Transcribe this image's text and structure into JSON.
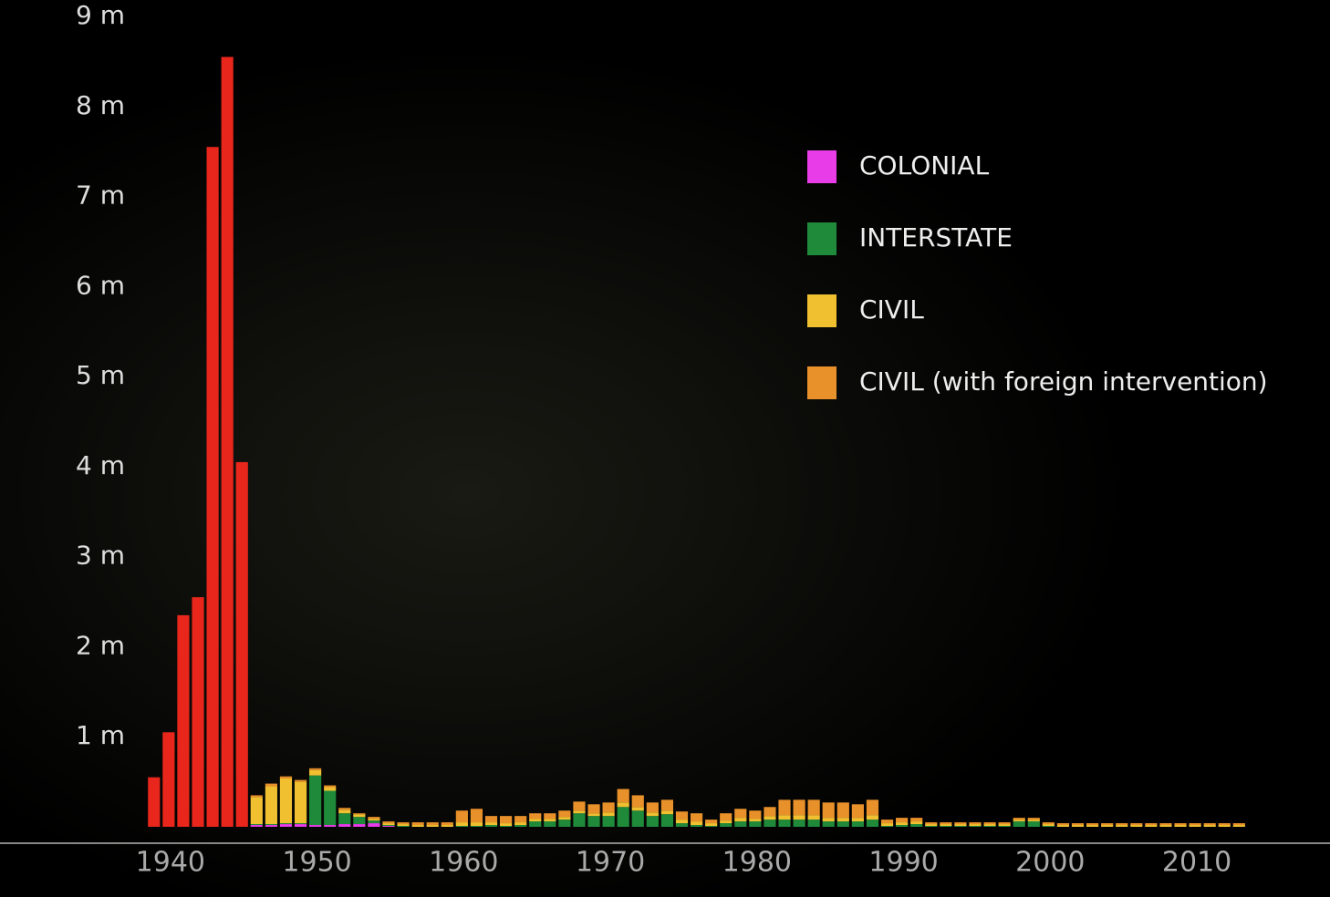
{
  "chart_data": {
    "type": "stacked_bar",
    "x": [
      1939,
      1940,
      1941,
      1942,
      1943,
      1944,
      1945,
      1946,
      1947,
      1948,
      1949,
      1950,
      1951,
      1952,
      1953,
      1954,
      1955,
      1956,
      1957,
      1958,
      1959,
      1960,
      1961,
      1962,
      1963,
      1964,
      1965,
      1966,
      1967,
      1968,
      1969,
      1970,
      1971,
      1972,
      1973,
      1974,
      1975,
      1976,
      1977,
      1978,
      1979,
      1980,
      1981,
      1982,
      1983,
      1984,
      1985,
      1986,
      1987,
      1988,
      1989,
      1990,
      1991,
      1992,
      1993,
      1994,
      1995,
      1996,
      1997,
      1998,
      1999,
      2000,
      2001,
      2002,
      2003,
      2004,
      2005,
      2006,
      2007,
      2008,
      2009,
      2010,
      2011,
      2012,
      2013
    ],
    "series": [
      {
        "color": "#e8261c",
        "values": [
          0.55,
          1.05,
          2.35,
          2.55,
          7.55,
          8.55,
          4.05,
          0,
          0,
          0,
          0,
          0,
          0,
          0,
          0,
          0,
          0,
          0,
          0,
          0,
          0,
          0,
          0,
          0,
          0,
          0,
          0,
          0,
          0,
          0,
          0,
          0,
          0,
          0,
          0,
          0,
          0,
          0,
          0,
          0,
          0,
          0,
          0,
          0,
          0,
          0,
          0,
          0,
          0,
          0,
          0,
          0,
          0,
          0,
          0,
          0,
          0,
          0,
          0,
          0,
          0,
          0,
          0,
          0,
          0,
          0,
          0,
          0,
          0,
          0,
          0,
          0,
          0,
          0,
          0
        ]
      },
      {
        "name": "COLONIAL",
        "color": "#e83ce8",
        "values": [
          0,
          0,
          0,
          0,
          0,
          0,
          0,
          0.02,
          0.02,
          0.03,
          0.03,
          0.02,
          0.02,
          0.03,
          0.03,
          0.04,
          0.01,
          0,
          0,
          0,
          0,
          0,
          0,
          0,
          0,
          0,
          0,
          0,
          0,
          0,
          0,
          0,
          0,
          0,
          0,
          0,
          0,
          0,
          0,
          0,
          0,
          0,
          0,
          0,
          0,
          0,
          0,
          0,
          0,
          0,
          0,
          0,
          0,
          0,
          0,
          0,
          0,
          0,
          0,
          0,
          0,
          0,
          0,
          0,
          0,
          0,
          0,
          0,
          0,
          0,
          0,
          0,
          0,
          0,
          0
        ]
      },
      {
        "name": "INTERSTATE",
        "color": "#1f8a3a",
        "values": [
          0,
          0,
          0,
          0,
          0,
          0,
          0,
          0.01,
          0.01,
          0.01,
          0.01,
          0.55,
          0.38,
          0.12,
          0.08,
          0.03,
          0.01,
          0.01,
          0,
          0,
          0,
          0.01,
          0.01,
          0.02,
          0.01,
          0.02,
          0.06,
          0.06,
          0.08,
          0.15,
          0.12,
          0.12,
          0.22,
          0.18,
          0.12,
          0.14,
          0.04,
          0.02,
          0.01,
          0.04,
          0.06,
          0.06,
          0.08,
          0.08,
          0.08,
          0.08,
          0.06,
          0.06,
          0.06,
          0.08,
          0.01,
          0.02,
          0.03,
          0.01,
          0.01,
          0.01,
          0.01,
          0.01,
          0.01,
          0.06,
          0.06,
          0.01,
          0,
          0,
          0,
          0,
          0,
          0,
          0,
          0,
          0,
          0,
          0,
          0,
          0
        ]
      },
      {
        "name": "CIVIL",
        "color": "#f0c030",
        "values": [
          0,
          0,
          0,
          0,
          0,
          0,
          0,
          0.3,
          0.42,
          0.5,
          0.46,
          0.06,
          0.04,
          0.04,
          0.03,
          0.02,
          0.02,
          0.02,
          0.02,
          0.02,
          0.02,
          0.04,
          0.04,
          0.03,
          0.03,
          0.03,
          0.03,
          0.03,
          0.03,
          0.03,
          0.03,
          0.04,
          0.05,
          0.04,
          0.04,
          0.04,
          0.04,
          0.04,
          0.03,
          0.03,
          0.04,
          0.03,
          0.04,
          0.05,
          0.05,
          0.05,
          0.04,
          0.04,
          0.04,
          0.05,
          0.03,
          0.03,
          0.03,
          0.02,
          0.02,
          0.02,
          0.02,
          0.02,
          0.02,
          0.02,
          0.02,
          0.02,
          0.02,
          0.02,
          0.02,
          0.02,
          0.02,
          0.02,
          0.02,
          0.02,
          0.02,
          0.02,
          0.02,
          0.02,
          0.02
        ]
      },
      {
        "name": "CIVIL (with foreign intervention)",
        "color": "#e8902a",
        "values": [
          0,
          0,
          0,
          0,
          0,
          0,
          0,
          0.02,
          0.03,
          0.02,
          0.02,
          0.02,
          0.02,
          0.02,
          0.01,
          0.02,
          0.02,
          0.02,
          0.03,
          0.03,
          0.03,
          0.13,
          0.15,
          0.07,
          0.08,
          0.07,
          0.06,
          0.06,
          0.07,
          0.1,
          0.1,
          0.11,
          0.15,
          0.13,
          0.11,
          0.12,
          0.09,
          0.09,
          0.04,
          0.08,
          0.1,
          0.09,
          0.1,
          0.17,
          0.17,
          0.17,
          0.17,
          0.17,
          0.15,
          0.17,
          0.04,
          0.05,
          0.04,
          0.02,
          0.02,
          0.02,
          0.02,
          0.02,
          0.02,
          0.02,
          0.02,
          0.02,
          0.02,
          0.02,
          0.02,
          0.02,
          0.02,
          0.02,
          0.02,
          0.02,
          0.02,
          0.02,
          0.02,
          0.02,
          0.02
        ]
      }
    ],
    "xlim": [
      1928.5,
      2019.2
    ],
    "xticks": [
      1940,
      1950,
      1960,
      1970,
      1980,
      1990,
      2000,
      2010
    ],
    "ylim": [
      0,
      9
    ],
    "yticks": [
      {
        "value": 1,
        "label": "1 m"
      },
      {
        "value": 2,
        "label": "2 m"
      },
      {
        "value": 3,
        "label": "3 m"
      },
      {
        "value": 4,
        "label": "4 m"
      },
      {
        "value": 5,
        "label": "5 m"
      },
      {
        "value": 6,
        "label": "6 m"
      },
      {
        "value": 7,
        "label": "7 m"
      },
      {
        "value": 8,
        "label": "8 m"
      },
      {
        "value": 9,
        "label": "9 m"
      }
    ],
    "grid": false,
    "legend": "upper right"
  }
}
